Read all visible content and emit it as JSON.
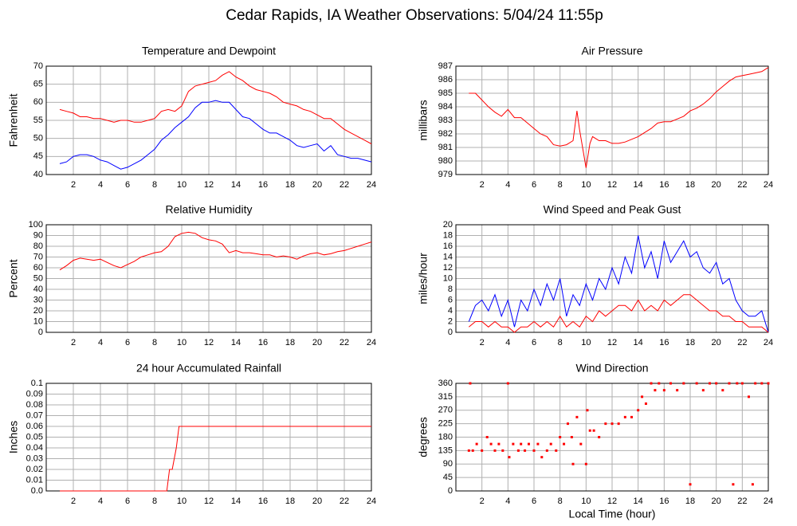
{
  "title": "Cedar Rapids, IA Weather Observations: 5/04/24 11:55p",
  "chart_data": [
    {
      "type": "line",
      "title": "Temperature and Dewpoint",
      "y_label": "Fahrenheit",
      "xlim": [
        0,
        24
      ],
      "xticks": [
        2,
        4,
        6,
        8,
        10,
        12,
        14,
        16,
        18,
        20,
        22,
        24
      ],
      "ylim": [
        40,
        70
      ],
      "yticks": [
        40,
        45,
        50,
        55,
        60,
        65,
        70
      ],
      "grid": true,
      "x": [
        1,
        1.5,
        2,
        2.5,
        3,
        3.5,
        4,
        4.5,
        5,
        5.5,
        6,
        6.5,
        7,
        7.5,
        8,
        8.5,
        9,
        9.5,
        10,
        10.5,
        11,
        11.5,
        12,
        12.5,
        13,
        13.5,
        14,
        14.5,
        15,
        15.5,
        16,
        16.5,
        17,
        17.5,
        18,
        18.5,
        19,
        19.5,
        20,
        20.5,
        21,
        21.5,
        22,
        22.5,
        23,
        23.5,
        24
      ],
      "series": [
        {
          "color": "#ff0000",
          "values": [
            58,
            57.5,
            57,
            56,
            56,
            55.5,
            55.5,
            55,
            54.5,
            55,
            55,
            54.5,
            54.5,
            55,
            55.5,
            57.5,
            58,
            57.5,
            59,
            63,
            64.5,
            65,
            65.5,
            66,
            67.5,
            68.5,
            67,
            66,
            64.5,
            63.5,
            63,
            62.5,
            61.5,
            60,
            59.5,
            59,
            58,
            57.5,
            56.5,
            55.5,
            55.5,
            54,
            52.5,
            51.5,
            50.5,
            49.5,
            48.5
          ]
        },
        {
          "color": "#0000ff",
          "values": [
            43,
            43.5,
            45,
            45.5,
            45.5,
            45,
            44,
            43.5,
            42.5,
            41.5,
            42,
            43,
            44,
            45.5,
            47,
            49.5,
            51,
            53,
            54.5,
            56,
            58.5,
            60,
            60,
            60.5,
            60,
            60,
            58,
            56,
            55.5,
            54,
            52.5,
            51.5,
            51.5,
            50.5,
            49.5,
            48,
            47.5,
            48,
            48.5,
            46.5,
            48,
            45.5,
            45,
            44.5,
            44.5,
            44,
            43.5
          ]
        }
      ]
    },
    {
      "type": "line",
      "title": "Air Pressure",
      "y_label": "millibars",
      "xlim": [
        0,
        24
      ],
      "xticks": [
        2,
        4,
        6,
        8,
        10,
        12,
        14,
        16,
        18,
        20,
        22,
        24
      ],
      "ylim": [
        979,
        987
      ],
      "yticks": [
        979,
        980,
        981,
        982,
        983,
        984,
        985,
        986,
        987
      ],
      "grid": true,
      "x": [
        1,
        1.5,
        2,
        2.5,
        3,
        3.5,
        4,
        4.5,
        5,
        5.5,
        6,
        6.5,
        7,
        7.5,
        8,
        8.5,
        9,
        9.3,
        9.5,
        10,
        10.3,
        10.5,
        11,
        11.5,
        12,
        12.5,
        13,
        13.5,
        14,
        14.5,
        15,
        15.5,
        16,
        16.5,
        17,
        17.5,
        18,
        18.5,
        19,
        19.5,
        20,
        20.5,
        21,
        21.5,
        22,
        22.5,
        23,
        23.5,
        24
      ],
      "series": [
        {
          "color": "#ff0000",
          "values": [
            985,
            985,
            984.5,
            984,
            983.6,
            983.3,
            983.8,
            983.2,
            983.2,
            982.8,
            982.4,
            982,
            981.8,
            981.2,
            981.1,
            981.2,
            981.5,
            983.7,
            982.3,
            979.5,
            981.3,
            981.8,
            981.5,
            981.5,
            981.3,
            981.3,
            981.4,
            981.6,
            981.8,
            982.1,
            982.4,
            982.8,
            982.9,
            982.9,
            983.1,
            983.3,
            983.7,
            983.9,
            984.2,
            984.6,
            985.1,
            985.5,
            985.9,
            986.2,
            986.3,
            986.4,
            986.5,
            986.6,
            986.9
          ]
        }
      ]
    },
    {
      "type": "line",
      "title": "Relative Humidity",
      "y_label": "Percent",
      "xlim": [
        0,
        24
      ],
      "xticks": [
        2,
        4,
        6,
        8,
        10,
        12,
        14,
        16,
        18,
        20,
        22,
        24
      ],
      "ylim": [
        0,
        100
      ],
      "yticks": [
        0,
        10,
        20,
        30,
        40,
        50,
        60,
        70,
        80,
        90,
        100
      ],
      "grid": true,
      "x": [
        1,
        1.5,
        2,
        2.5,
        3,
        3.5,
        4,
        4.5,
        5,
        5.5,
        6,
        6.5,
        7,
        7.5,
        8,
        8.5,
        9,
        9.5,
        10,
        10.5,
        11,
        11.5,
        12,
        12.5,
        13,
        13.5,
        14,
        14.5,
        15,
        15.5,
        16,
        16.5,
        17,
        17.5,
        18,
        18.5,
        19,
        19.5,
        20,
        20.5,
        21,
        21.5,
        22,
        22.5,
        23,
        23.5,
        24
      ],
      "series": [
        {
          "color": "#ff0000",
          "values": [
            58,
            62,
            67,
            69,
            68,
            67,
            68,
            65,
            62,
            60,
            63,
            66,
            70,
            72,
            74,
            75,
            80,
            89,
            92,
            93,
            92,
            88,
            86,
            85,
            82,
            74,
            76,
            74,
            74,
            73,
            72,
            72,
            70,
            71,
            70,
            68,
            71,
            73,
            74,
            72,
            73,
            75,
            76,
            78,
            80,
            82,
            84
          ]
        }
      ]
    },
    {
      "type": "line",
      "title": "Wind Speed and Peak Gust",
      "y_label": "miles/hour",
      "xlim": [
        0,
        24
      ],
      "xticks": [
        2,
        4,
        6,
        8,
        10,
        12,
        14,
        16,
        18,
        20,
        22,
        24
      ],
      "ylim": [
        0,
        20
      ],
      "yticks": [
        0,
        2,
        4,
        6,
        8,
        10,
        12,
        14,
        16,
        18,
        20
      ],
      "grid": true,
      "x": [
        1,
        1.5,
        2,
        2.5,
        3,
        3.5,
        4,
        4.5,
        5,
        5.5,
        6,
        6.5,
        7,
        7.5,
        8,
        8.5,
        9,
        9.5,
        10,
        10.5,
        11,
        11.5,
        12,
        12.5,
        13,
        13.5,
        14,
        14.5,
        15,
        15.5,
        16,
        16.5,
        17,
        17.5,
        18,
        18.5,
        19,
        19.5,
        20,
        20.5,
        21,
        21.5,
        22,
        22.5,
        23,
        23.5,
        24
      ],
      "series": [
        {
          "color": "#0000ff",
          "values": [
            2,
            5,
            6,
            4,
            7,
            3,
            6,
            1,
            6,
            4,
            8,
            5,
            9,
            6,
            10,
            3,
            7,
            5,
            9,
            6,
            10,
            8,
            12,
            9,
            14,
            11,
            18,
            12,
            15,
            10,
            17,
            13,
            15,
            17,
            14,
            15,
            12,
            11,
            13,
            9,
            10,
            6,
            4,
            3,
            3,
            4,
            0
          ]
        },
        {
          "color": "#ff0000",
          "values": [
            1,
            2,
            2,
            1,
            2,
            1,
            1,
            0,
            1,
            1,
            2,
            1,
            2,
            1,
            3,
            1,
            2,
            1,
            3,
            2,
            4,
            3,
            4,
            5,
            5,
            4,
            6,
            4,
            5,
            4,
            6,
            5,
            6,
            7,
            7,
            6,
            5,
            4,
            4,
            3,
            3,
            2,
            2,
            1,
            1,
            1,
            0
          ]
        }
      ]
    },
    {
      "type": "line",
      "title": "24 hour Accumulated Rainfall",
      "y_label": "Inches",
      "xlim": [
        0,
        24
      ],
      "xticks": [
        2,
        4,
        6,
        8,
        10,
        12,
        14,
        16,
        18,
        20,
        22,
        24
      ],
      "ylim": [
        0,
        0.1
      ],
      "yticks": [
        {
          "value": 0,
          "label": "0.0"
        },
        0.01,
        0.02,
        0.03,
        0.04,
        0.05,
        0.06,
        0.07,
        0.08,
        0.09,
        0.1
      ],
      "grid": true,
      "x": [
        1,
        8.9,
        9.1,
        9.3,
        9.6,
        9.8,
        24
      ],
      "series": [
        {
          "color": "#ff0000",
          "values": [
            0,
            0,
            0.02,
            0.02,
            0.04,
            0.06,
            0.06
          ]
        }
      ]
    },
    {
      "type": "scatter",
      "title": "Wind Direction",
      "y_label": "degrees",
      "x_label": "Local Time (hour)",
      "xlim": [
        0,
        24
      ],
      "xticks": [
        2,
        4,
        6,
        8,
        10,
        12,
        14,
        16,
        18,
        20,
        22,
        24
      ],
      "ylim": [
        0,
        360
      ],
      "yticks": [
        0,
        45,
        90,
        135,
        180,
        225,
        270,
        315,
        360
      ],
      "grid": true,
      "x": [
        1,
        1.1,
        1.3,
        1.6,
        2,
        2.4,
        2.7,
        3,
        3.3,
        3.6,
        4,
        4.1,
        4.4,
        4.8,
        5,
        5.3,
        5.6,
        6,
        6.3,
        6.6,
        7,
        7.3,
        7.7,
        8,
        8.3,
        8.6,
        8.9,
        9,
        9.3,
        9.6,
        10,
        10.1,
        10.3,
        10.6,
        11,
        11.5,
        12,
        12.5,
        13,
        13.5,
        14,
        14.3,
        14.6,
        15,
        15.3,
        15.6,
        16,
        16.5,
        17,
        17.5,
        18,
        18.5,
        19,
        19.5,
        20,
        20.5,
        21,
        21.3,
        21.6,
        22,
        22.5,
        22.8,
        23,
        23.5,
        24
      ],
      "color": "#ff0000",
      "values": [
        135,
        360,
        135,
        157,
        135,
        180,
        157,
        135,
        157,
        135,
        360,
        113,
        157,
        135,
        157,
        135,
        157,
        135,
        157,
        113,
        135,
        157,
        135,
        180,
        157,
        225,
        180,
        90,
        247,
        157,
        90,
        270,
        202,
        202,
        180,
        225,
        225,
        225,
        247,
        247,
        270,
        315,
        292,
        360,
        337,
        360,
        337,
        360,
        337,
        360,
        22,
        360,
        337,
        360,
        360,
        337,
        360,
        22,
        360,
        360,
        315,
        22,
        360,
        360,
        360
      ]
    }
  ]
}
